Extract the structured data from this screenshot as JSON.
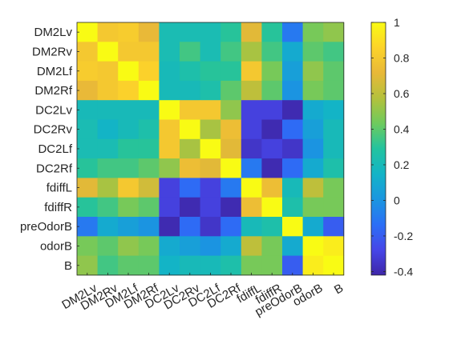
{
  "chart_data": {
    "type": "heatmap",
    "title": "",
    "xlabel": "",
    "ylabel": "",
    "labels": [
      "DM2Lv",
      "DM2Rv",
      "DM2Lf",
      "DM2Rf",
      "DC2Lv",
      "DC2Rv",
      "DC2Lf",
      "DC2Rf",
      "fdiffL",
      "fdiffR",
      "preOdorB",
      "odorB",
      "B"
    ],
    "colormap": "parula",
    "clim": [
      -0.42,
      1.0
    ],
    "colorbar_ticks": [
      -0.4,
      -0.2,
      0,
      0.2,
      0.4,
      0.6,
      0.8,
      1
    ],
    "colorbar_tick_labels": [
      "-0.4",
      "-0.2",
      "0",
      "0.2",
      "0.4",
      "0.6",
      "0.8",
      "1"
    ],
    "colorbar_location": "right",
    "values": [
      [
        1.0,
        0.8,
        0.82,
        0.72,
        0.22,
        0.22,
        0.22,
        0.3,
        0.7,
        0.3,
        -0.1,
        0.45,
        0.5
      ],
      [
        0.8,
        1.0,
        0.8,
        0.8,
        0.22,
        0.35,
        0.22,
        0.35,
        0.55,
        0.35,
        0.1,
        0.4,
        0.35
      ],
      [
        0.82,
        0.8,
        1.0,
        0.85,
        0.2,
        0.25,
        0.3,
        0.3,
        0.8,
        0.45,
        0.05,
        0.5,
        0.4
      ],
      [
        0.72,
        0.8,
        0.85,
        1.0,
        0.2,
        0.2,
        0.25,
        0.4,
        0.6,
        0.4,
        0.0,
        0.45,
        0.4
      ],
      [
        0.2,
        0.2,
        0.2,
        0.2,
        1.0,
        0.8,
        0.8,
        0.5,
        -0.3,
        -0.3,
        -0.4,
        0.1,
        0.15
      ],
      [
        0.22,
        0.15,
        0.2,
        0.25,
        0.8,
        1.0,
        0.55,
        0.75,
        -0.3,
        -0.4,
        -0.15,
        0.05,
        0.2
      ],
      [
        0.22,
        0.22,
        0.3,
        0.3,
        0.8,
        0.55,
        1.0,
        0.7,
        -0.35,
        -0.3,
        -0.35,
        0.0,
        0.2
      ],
      [
        0.3,
        0.35,
        0.35,
        0.4,
        0.5,
        0.75,
        0.7,
        1.0,
        -0.1,
        -0.4,
        -0.15,
        0.1,
        0.25
      ],
      [
        0.7,
        0.55,
        0.8,
        0.65,
        -0.3,
        -0.15,
        -0.3,
        -0.1,
        1.0,
        0.75,
        0.2,
        0.6,
        0.45
      ],
      [
        0.3,
        0.35,
        0.45,
        0.4,
        -0.3,
        -0.4,
        -0.3,
        -0.4,
        0.75,
        1.0,
        0.25,
        0.45,
        0.45
      ],
      [
        -0.1,
        0.1,
        0.05,
        0.0,
        -0.4,
        -0.15,
        -0.35,
        -0.15,
        0.2,
        0.25,
        1.0,
        0.1,
        -0.2
      ],
      [
        0.45,
        0.4,
        0.5,
        0.45,
        0.1,
        0.05,
        0.0,
        0.1,
        0.6,
        0.45,
        0.1,
        1.0,
        0.95
      ],
      [
        0.5,
        0.35,
        0.4,
        0.4,
        0.15,
        0.2,
        0.2,
        0.25,
        0.45,
        0.45,
        -0.2,
        0.95,
        1.0
      ]
    ]
  }
}
